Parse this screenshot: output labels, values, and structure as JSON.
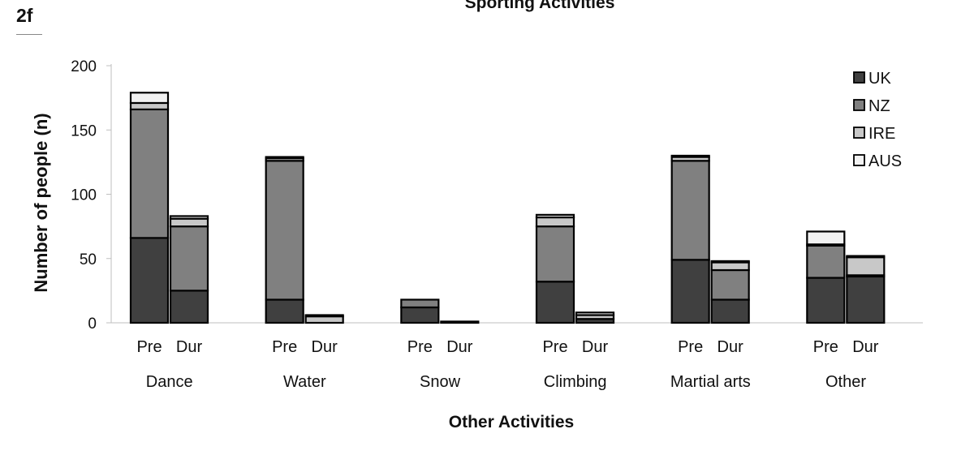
{
  "figure_label": "2f",
  "chart_data": {
    "type": "bar",
    "stacked": true,
    "title": "Sporting Activities",
    "xlabel": "Other Activities",
    "ylabel": "Number of people (n)",
    "ylim": [
      0,
      200
    ],
    "yticks": [
      0,
      50,
      100,
      150,
      200
    ],
    "grid": false,
    "legend_position": "top-right",
    "groups": [
      "Dance",
      "Water",
      "Snow",
      "Climbing",
      "Martial arts",
      "Other"
    ],
    "subcategories": [
      "Pre",
      "Dur"
    ],
    "series": [
      {
        "name": "UK",
        "color": "#404040",
        "values": [
          66,
          25,
          18,
          0,
          12,
          0,
          32,
          3,
          49,
          18,
          35,
          36
        ]
      },
      {
        "name": "NZ",
        "color": "#808080",
        "values": [
          100,
          50,
          108,
          0,
          6,
          0,
          43,
          0,
          77,
          23,
          25,
          1
        ]
      },
      {
        "name": "IRE",
        "color": "#c8c8c8",
        "values": [
          5,
          6,
          2,
          5,
          0,
          1,
          7,
          3,
          3,
          6,
          1,
          14
        ]
      },
      {
        "name": "AUS",
        "color": "#f2f2f2",
        "values": [
          8,
          2,
          1,
          1,
          0,
          0,
          2,
          2,
          1,
          1,
          10,
          1
        ]
      }
    ]
  }
}
